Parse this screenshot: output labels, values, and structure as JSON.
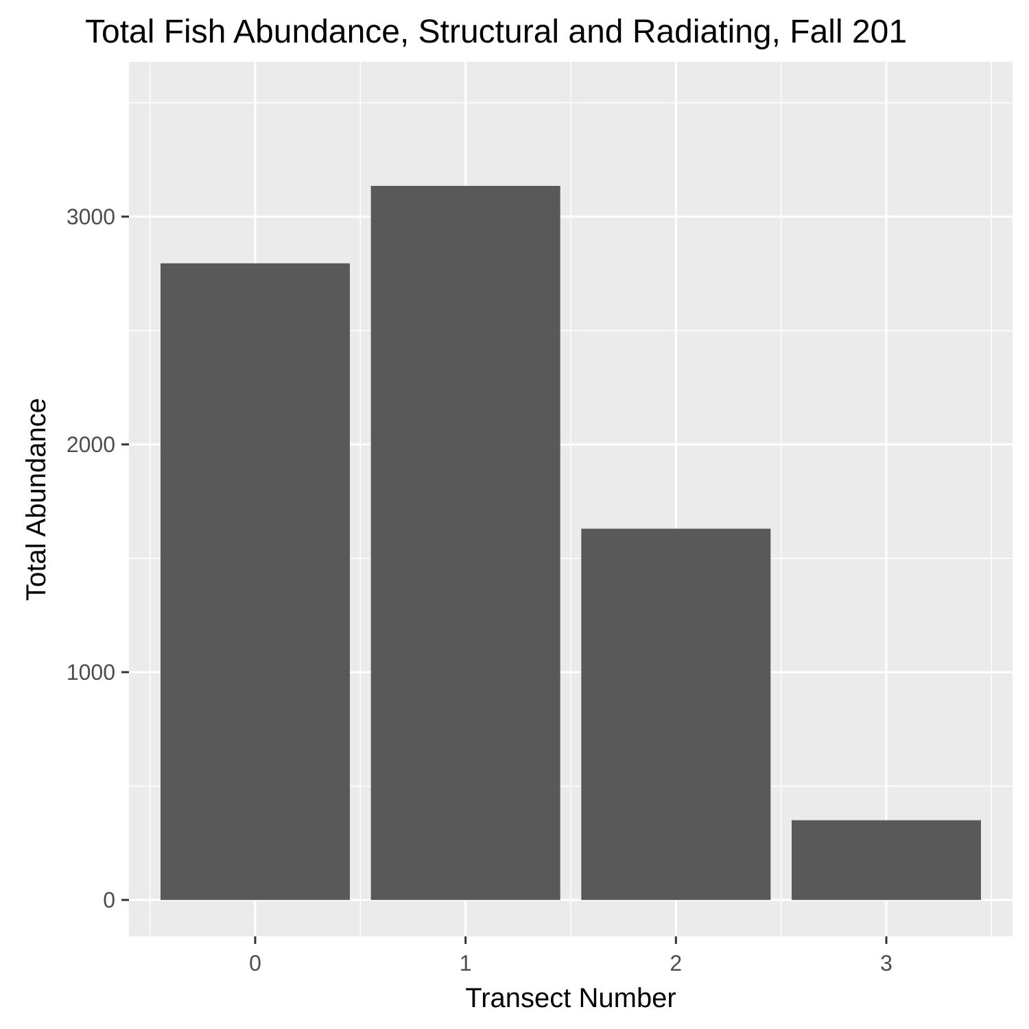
{
  "chart_data": {
    "type": "bar",
    "title": "Total Fish Abundance, Structural and Radiating, Fall 201",
    "xlabel": "Transect Number",
    "ylabel": "Total Abundance",
    "categories": [
      "0",
      "1",
      "2",
      "3"
    ],
    "values": [
      2795,
      3135,
      1630,
      350
    ],
    "y_ticks": [
      "0",
      "1000",
      "2000",
      "3000"
    ],
    "ylim": [
      -160,
      3680
    ],
    "grid": true,
    "bar_color": "#595959",
    "panel_color": "#ebebeb"
  }
}
